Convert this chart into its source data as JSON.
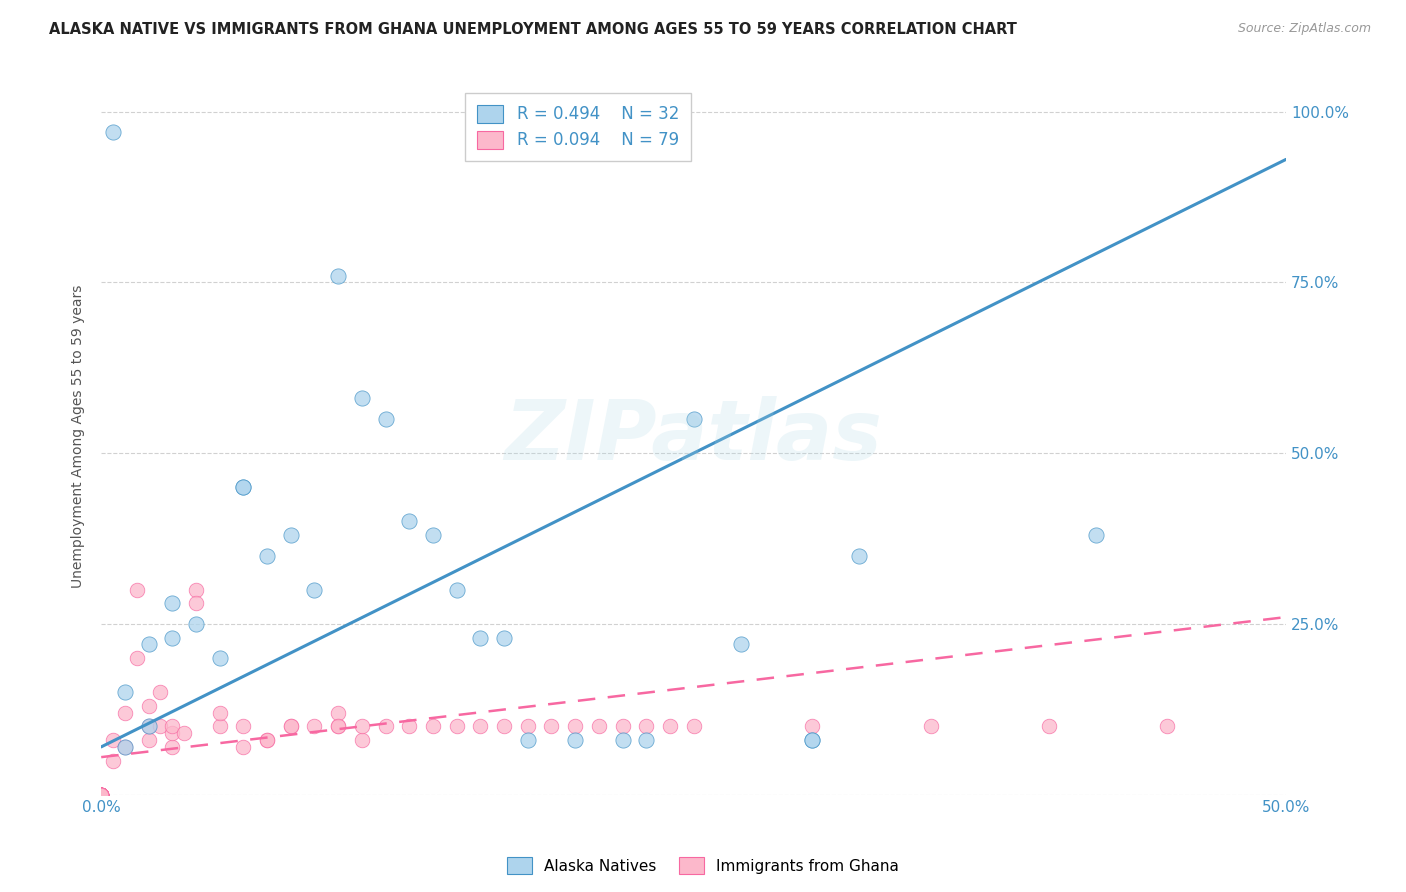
{
  "title": "ALASKA NATIVE VS IMMIGRANTS FROM GHANA UNEMPLOYMENT AMONG AGES 55 TO 59 YEARS CORRELATION CHART",
  "source": "Source: ZipAtlas.com",
  "ylabel": "Unemployment Among Ages 55 to 59 years",
  "xlim": [
    0.0,
    0.5
  ],
  "ylim": [
    0.0,
    1.05
  ],
  "watermark": "ZIPatlas",
  "alaska_x": [
    0.005,
    0.01,
    0.01,
    0.02,
    0.02,
    0.03,
    0.03,
    0.04,
    0.05,
    0.06,
    0.06,
    0.07,
    0.08,
    0.09,
    0.1,
    0.11,
    0.12,
    0.13,
    0.14,
    0.15,
    0.16,
    0.17,
    0.18,
    0.2,
    0.22,
    0.23,
    0.25,
    0.27,
    0.3,
    0.3,
    0.32,
    0.42
  ],
  "alaska_y": [
    0.97,
    0.15,
    0.07,
    0.1,
    0.22,
    0.23,
    0.28,
    0.25,
    0.2,
    0.45,
    0.45,
    0.35,
    0.38,
    0.3,
    0.76,
    0.58,
    0.55,
    0.4,
    0.38,
    0.3,
    0.23,
    0.23,
    0.08,
    0.08,
    0.08,
    0.08,
    0.55,
    0.22,
    0.08,
    0.08,
    0.35,
    0.38
  ],
  "ghana_x": [
    0.0,
    0.0,
    0.0,
    0.0,
    0.0,
    0.0,
    0.0,
    0.0,
    0.0,
    0.0,
    0.0,
    0.0,
    0.0,
    0.0,
    0.0,
    0.0,
    0.0,
    0.0,
    0.0,
    0.0,
    0.0,
    0.0,
    0.0,
    0.0,
    0.0,
    0.0,
    0.0,
    0.0,
    0.0,
    0.0,
    0.005,
    0.005,
    0.01,
    0.01,
    0.015,
    0.015,
    0.02,
    0.02,
    0.02,
    0.025,
    0.025,
    0.03,
    0.03,
    0.03,
    0.035,
    0.04,
    0.04,
    0.05,
    0.05,
    0.06,
    0.06,
    0.07,
    0.07,
    0.08,
    0.08,
    0.09,
    0.1,
    0.1,
    0.1,
    0.11,
    0.11,
    0.12,
    0.13,
    0.14,
    0.15,
    0.16,
    0.17,
    0.18,
    0.19,
    0.2,
    0.21,
    0.22,
    0.23,
    0.24,
    0.25,
    0.3,
    0.35,
    0.4,
    0.45
  ],
  "ghana_y": [
    0.0,
    0.0,
    0.0,
    0.0,
    0.0,
    0.0,
    0.0,
    0.0,
    0.0,
    0.0,
    0.0,
    0.0,
    0.0,
    0.0,
    0.0,
    0.0,
    0.0,
    0.0,
    0.0,
    0.0,
    0.0,
    0.0,
    0.0,
    0.0,
    0.0,
    0.0,
    0.0,
    0.0,
    0.0,
    0.0,
    0.05,
    0.08,
    0.12,
    0.07,
    0.2,
    0.3,
    0.13,
    0.08,
    0.1,
    0.15,
    0.1,
    0.07,
    0.09,
    0.1,
    0.09,
    0.3,
    0.28,
    0.1,
    0.12,
    0.07,
    0.1,
    0.08,
    0.08,
    0.1,
    0.1,
    0.1,
    0.1,
    0.12,
    0.1,
    0.08,
    0.1,
    0.1,
    0.1,
    0.1,
    0.1,
    0.1,
    0.1,
    0.1,
    0.1,
    0.1,
    0.1,
    0.1,
    0.1,
    0.1,
    0.1,
    0.1,
    0.1,
    0.1,
    0.1
  ],
  "blue_fill": "#aed4ed",
  "blue_edge": "#4292c6",
  "pink_fill": "#fcb8cb",
  "pink_edge": "#f768a1",
  "blue_line_color": "#4292c6",
  "pink_line_color": "#f768a1",
  "bg_color": "#ffffff",
  "grid_color": "#cccccc",
  "tick_color": "#4292c6",
  "blue_trend_x": [
    0.0,
    0.5
  ],
  "blue_trend_y": [
    0.07,
    0.93
  ],
  "pink_trend_x": [
    0.0,
    0.5
  ],
  "pink_trend_y": [
    0.055,
    0.26
  ]
}
